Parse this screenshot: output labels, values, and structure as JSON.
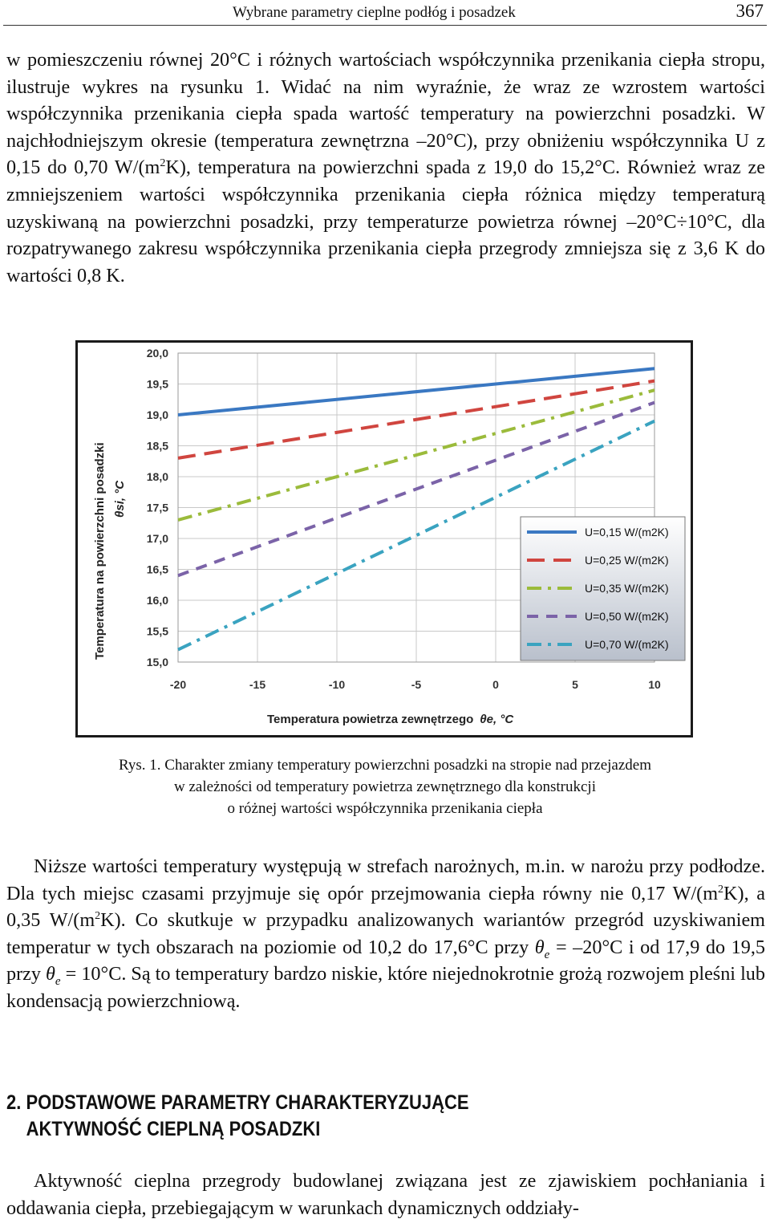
{
  "header": {
    "title": "Wybrane parametry cieplne podłóg i posadzek",
    "page_number": "367"
  },
  "para1": {
    "part1": "w pomieszczeniu równej 20°C i różnych wartościach współczynnika przenikania ciepła stropu, ilustruje wykres na rysunku 1. Widać na nim wyraźnie, że wraz ze wzrostem wartości współczynnika przenikania ciepła spada wartość temperatury na powierzchni posadzki. W najchłodniejszym okresie (temperatura zewnętrzna –20°C), przy obniżeniu współczynnika U z 0,15 do 0,70 W/(m",
    "sup1": "2",
    "part2": "K), temperatura na powierzchni spada z 19,0 do 15,2°C. Również wraz ze zmniejszeniem wartości współczynnika przenikania ciepła różnica między temperaturą uzyskiwaną na powierzchni posadzki, przy temperaturze powietrza równej –20°C÷10°C, dla rozpatrywanego zakresu współczynnika przenikania ciepła przegrody zmniejsza się z 3,6 K do wartości 0,8 K."
  },
  "chart_data": {
    "type": "line",
    "xlabel": "Temperatura powietrza zewnętrzego",
    "xlabel_symbol": "θe, °C",
    "ylabel": "Temperatura na powierzchni posadzki",
    "ylabel_symbol": "θsi, °C",
    "xlim": [
      -20,
      10
    ],
    "ylim": [
      15.0,
      20.0
    ],
    "x_ticks": [
      "-20",
      "-15",
      "-10",
      "-5",
      "0",
      "5",
      "10"
    ],
    "y_ticks": [
      "15,0",
      "15,5",
      "16,0",
      "16,5",
      "17,0",
      "17,5",
      "18,0",
      "18,5",
      "19,0",
      "19,5",
      "20,0"
    ],
    "grid": true,
    "legend_position": "right",
    "x": [
      -20,
      10
    ],
    "series": [
      {
        "name": "U=0,15 W/(m2K)",
        "values": [
          19.0,
          19.75
        ],
        "color": "#3a78c2",
        "dash": "solid"
      },
      {
        "name": "U=0,25 W/(m2K)",
        "values": [
          18.3,
          19.55
        ],
        "color": "#d0453f",
        "dash": "longdash"
      },
      {
        "name": "U=0,35 W/(m2K)",
        "values": [
          17.3,
          19.4
        ],
        "color": "#9bbb3b",
        "dash": "dashdot"
      },
      {
        "name": "U=0,50 W/(m2K)",
        "values": [
          16.4,
          19.2
        ],
        "color": "#7b63a8",
        "dash": "dash"
      },
      {
        "name": "U=0,70 W/(m2K)",
        "values": [
          15.2,
          18.9
        ],
        "color": "#3aa3c0",
        "dash": "dashdot"
      }
    ]
  },
  "caption": {
    "line1": "Rys. 1. Charakter zmiany temperatury powierzchni posadzki na stropie nad przejazdem",
    "line2": "w zależności od temperatury powietrza zewnętrznego dla konstrukcji",
    "line3": "o różnej wartości współczynnika przenikania ciepła"
  },
  "para2": {
    "a": "Niższe wartości temperatury występują w strefach narożnych, m.in. w narożu przy podłodze. Dla tych miejsc czasami przyjmuje się opór przejmowania ciepła równy nie 0,17 W/(m",
    "sup_a": "2",
    "b": "K), a 0,35 W/(m",
    "sup_b": "2",
    "c": "K). Co skutkuje w przypadku analizowanych wariantów przegród uzyskiwaniem temperatur w tych obszarach na poziomie od 10,2 do 17,6°C przy ",
    "theta1": "θ",
    "sub1": "e",
    "d": " = –20°C i od 17,9 do 19,5 przy ",
    "theta2": "θ",
    "sub2": "e",
    "e": " = 10°C. Są to temperatury bardzo niskie, które niejednokrotnie grożą rozwojem pleśni lub kondensacją powierzchniową."
  },
  "section": {
    "line1": "2. PODSTAWOWE PARAMETRY CHARAKTERYZUJĄCE",
    "line2": "AKTYWNOŚĆ CIEPLNĄ POSADZKI"
  },
  "para3": {
    "text": "Aktywność cieplna przegrody budowlanej związana jest ze zjawiskiem pochłaniania i oddawania ciepła, przebiegającym w warunkach dynamicznych oddziały-"
  }
}
